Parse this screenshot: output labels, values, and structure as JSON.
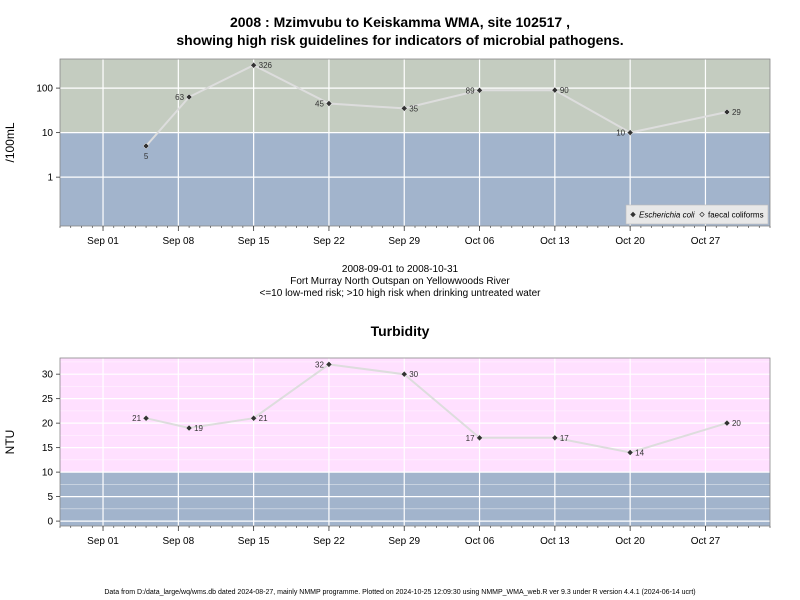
{
  "top_title_line1": "2008 : Mzimvubu to Keiskamma WMA, site 102517 ,",
  "top_title_line2": "showing high risk guidelines for indicators of microbial pathogens.",
  "mid_line1": "2008-09-01 to 2008-10-31",
  "mid_line2": "Fort Murray North Outspan on Yellowwoods River",
  "mid_line3": "<=10 low-med risk; >10 high risk when drinking untreated water",
  "footer": "Data from D:/data_large/wq/wms.db dated 2024-08-27, mainly NMMP programme. Plotted on 2024-10-25 12:09:30 using NMMP_WMA_web.R ver 9.3 under R version 4.4.1 (2024-06-14 ucrt)",
  "colors": {
    "high_risk_band": "#c4ccc0",
    "low_risk_band": "#a2b4cc",
    "turbidity_band": "#ffe0ff",
    "line": "#dddddd",
    "marker": "#333333"
  },
  "chart_data": [
    {
      "type": "line",
      "title": "",
      "ylabel": "/100mL",
      "y_scale": "log",
      "ylim": [
        0.08,
        450
      ],
      "yticks": [
        {
          "value": 1,
          "label": "1"
        },
        {
          "value": 10,
          "label": "10"
        },
        {
          "value": 100,
          "label": "100"
        }
      ],
      "xlim": [
        "2008-08-28",
        "2008-11-02"
      ],
      "xticks": [
        {
          "date": "2008-09-01",
          "label": "Sep 01"
        },
        {
          "date": "2008-09-08",
          "label": "Sep 08"
        },
        {
          "date": "2008-09-15",
          "label": "Sep 15"
        },
        {
          "date": "2008-09-22",
          "label": "Sep 22"
        },
        {
          "date": "2008-09-29",
          "label": "Sep 29"
        },
        {
          "date": "2008-10-06",
          "label": "Oct 06"
        },
        {
          "date": "2008-10-13",
          "label": "Oct 13"
        },
        {
          "date": "2008-10-20",
          "label": "Oct 20"
        },
        {
          "date": "2008-10-27",
          "label": "Oct 27"
        }
      ],
      "threshold": 10,
      "legend": {
        "position": "bottom-right",
        "entries": [
          {
            "label": "Escherichia coli",
            "italic": true,
            "marker": "filled-diamond"
          },
          {
            "label": "faecal coliforms",
            "italic": false,
            "marker": "open-diamond"
          }
        ]
      },
      "series": [
        {
          "name": "Escherichia coli",
          "points": [
            {
              "date": "2008-09-05",
              "value": 5,
              "label": "5",
              "label_pos": "below"
            },
            {
              "date": "2008-09-09",
              "value": 63,
              "label": "63",
              "label_pos": "left"
            },
            {
              "date": "2008-09-15",
              "value": 326,
              "label": "326",
              "label_pos": "right"
            },
            {
              "date": "2008-09-22",
              "value": 45,
              "label": "45",
              "label_pos": "left"
            },
            {
              "date": "2008-09-29",
              "value": 35,
              "label": "35",
              "label_pos": "right"
            },
            {
              "date": "2008-10-06",
              "value": 89,
              "label": "89",
              "label_pos": "left"
            },
            {
              "date": "2008-10-13",
              "value": 90,
              "label": "90",
              "label_pos": "right"
            },
            {
              "date": "2008-10-20",
              "value": 10,
              "label": "10",
              "label_pos": "left"
            },
            {
              "date": "2008-10-29",
              "value": 29,
              "label": "29",
              "label_pos": "right"
            }
          ]
        }
      ]
    },
    {
      "type": "line",
      "title": "Turbidity",
      "ylabel": "NTU",
      "y_scale": "linear",
      "ylim": [
        -1,
        33.3
      ],
      "yticks": [
        {
          "value": 0,
          "label": "0"
        },
        {
          "value": 5,
          "label": "5"
        },
        {
          "value": 10,
          "label": "10"
        },
        {
          "value": 15,
          "label": "15"
        },
        {
          "value": 20,
          "label": "20"
        },
        {
          "value": 25,
          "label": "25"
        },
        {
          "value": 30,
          "label": "30"
        }
      ],
      "xlim": [
        "2008-08-28",
        "2008-11-02"
      ],
      "xticks": [
        {
          "date": "2008-09-01",
          "label": "Sep 01"
        },
        {
          "date": "2008-09-08",
          "label": "Sep 08"
        },
        {
          "date": "2008-09-15",
          "label": "Sep 15"
        },
        {
          "date": "2008-09-22",
          "label": "Sep 22"
        },
        {
          "date": "2008-09-29",
          "label": "Sep 29"
        },
        {
          "date": "2008-10-06",
          "label": "Oct 06"
        },
        {
          "date": "2008-10-13",
          "label": "Oct 13"
        },
        {
          "date": "2008-10-20",
          "label": "Oct 20"
        },
        {
          "date": "2008-10-27",
          "label": "Oct 27"
        }
      ],
      "threshold": 10,
      "series": [
        {
          "name": "Turbidity",
          "points": [
            {
              "date": "2008-09-05",
              "value": 21,
              "label": "21",
              "label_pos": "left"
            },
            {
              "date": "2008-09-09",
              "value": 19,
              "label": "19",
              "label_pos": "right"
            },
            {
              "date": "2008-09-15",
              "value": 21,
              "label": "21",
              "label_pos": "right"
            },
            {
              "date": "2008-09-22",
              "value": 32,
              "label": "32",
              "label_pos": "left"
            },
            {
              "date": "2008-09-29",
              "value": 30,
              "label": "30",
              "label_pos": "right"
            },
            {
              "date": "2008-10-06",
              "value": 17,
              "label": "17",
              "label_pos": "left"
            },
            {
              "date": "2008-10-13",
              "value": 17,
              "label": "17",
              "label_pos": "right"
            },
            {
              "date": "2008-10-20",
              "value": 14,
              "label": "14",
              "label_pos": "right"
            },
            {
              "date": "2008-10-29",
              "value": 20,
              "label": "20",
              "label_pos": "right"
            }
          ]
        }
      ]
    }
  ]
}
